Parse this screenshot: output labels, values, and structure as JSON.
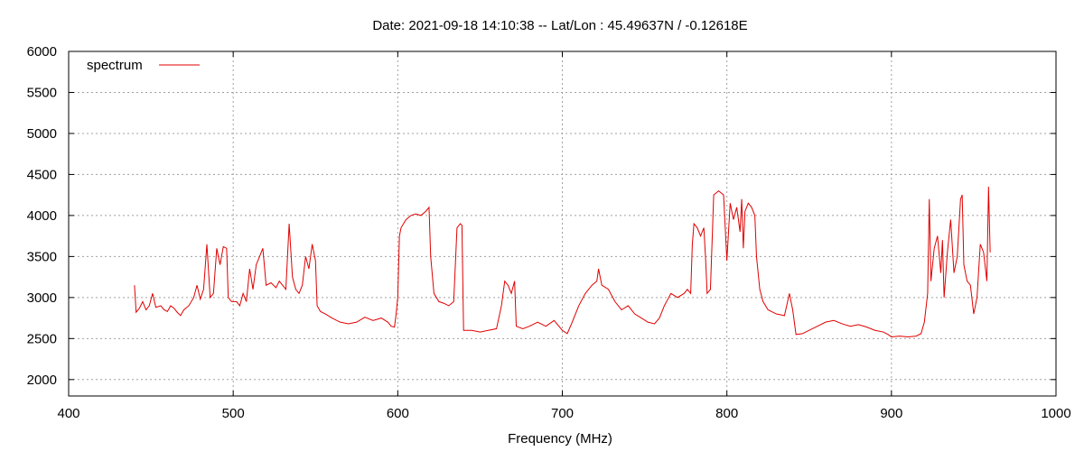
{
  "chart_data": {
    "type": "line",
    "title": "Date: 2021-09-18 14:10:38  --  Lat/Lon : 45.49637N / -0.12618E",
    "xlabel": "Frequency (MHz)",
    "ylabel": "",
    "xlim": [
      400,
      1000
    ],
    "ylim": [
      1800,
      6000
    ],
    "xticks": [
      "400",
      "500",
      "600",
      "700",
      "800",
      "900",
      "1000"
    ],
    "yticks": [
      "2000",
      "2500",
      "3000",
      "3500",
      "4000",
      "4500",
      "5000",
      "5500",
      "6000"
    ],
    "grid": true,
    "legend_position": "top-left",
    "series": [
      {
        "name": "spectrum",
        "color": "#e00000",
        "points": [
          [
            440,
            3150
          ],
          [
            441,
            2820
          ],
          [
            443,
            2870
          ],
          [
            445,
            2950
          ],
          [
            447,
            2850
          ],
          [
            449,
            2900
          ],
          [
            451,
            3050
          ],
          [
            453,
            2880
          ],
          [
            456,
            2900
          ],
          [
            458,
            2850
          ],
          [
            460,
            2830
          ],
          [
            462,
            2900
          ],
          [
            464,
            2870
          ],
          [
            466,
            2820
          ],
          [
            468,
            2780
          ],
          [
            470,
            2850
          ],
          [
            473,
            2900
          ],
          [
            476,
            3000
          ],
          [
            478,
            3150
          ],
          [
            480,
            2980
          ],
          [
            482,
            3100
          ],
          [
            484,
            3650
          ],
          [
            486,
            3000
          ],
          [
            488,
            3050
          ],
          [
            490,
            3600
          ],
          [
            492,
            3400
          ],
          [
            494,
            3620
          ],
          [
            496,
            3600
          ],
          [
            497,
            3000
          ],
          [
            499,
            2950
          ],
          [
            502,
            2950
          ],
          [
            504,
            2900
          ],
          [
            506,
            3050
          ],
          [
            508,
            2950
          ],
          [
            510,
            3350
          ],
          [
            512,
            3100
          ],
          [
            514,
            3400
          ],
          [
            516,
            3500
          ],
          [
            518,
            3600
          ],
          [
            520,
            3150
          ],
          [
            523,
            3180
          ],
          [
            526,
            3120
          ],
          [
            528,
            3200
          ],
          [
            530,
            3150
          ],
          [
            532,
            3100
          ],
          [
            534,
            3900
          ],
          [
            536,
            3250
          ],
          [
            538,
            3100
          ],
          [
            540,
            3050
          ],
          [
            542,
            3150
          ],
          [
            544,
            3500
          ],
          [
            546,
            3350
          ],
          [
            548,
            3650
          ],
          [
            550,
            3450
          ],
          [
            551,
            2900
          ],
          [
            553,
            2830
          ],
          [
            556,
            2800
          ],
          [
            560,
            2750
          ],
          [
            565,
            2700
          ],
          [
            570,
            2680
          ],
          [
            575,
            2700
          ],
          [
            580,
            2760
          ],
          [
            585,
            2720
          ],
          [
            590,
            2750
          ],
          [
            594,
            2700
          ],
          [
            596,
            2650
          ],
          [
            598,
            2640
          ],
          [
            599,
            2800
          ],
          [
            600,
            3000
          ],
          [
            601,
            3750
          ],
          [
            602,
            3850
          ],
          [
            605,
            3950
          ],
          [
            608,
            4000
          ],
          [
            611,
            4020
          ],
          [
            614,
            4000
          ],
          [
            617,
            4050
          ],
          [
            619,
            4100
          ],
          [
            620,
            3500
          ],
          [
            622,
            3050
          ],
          [
            625,
            2950
          ],
          [
            628,
            2930
          ],
          [
            631,
            2900
          ],
          [
            634,
            2950
          ],
          [
            636,
            3850
          ],
          [
            638,
            3900
          ],
          [
            639,
            3880
          ],
          [
            640,
            2600
          ],
          [
            645,
            2600
          ],
          [
            650,
            2580
          ],
          [
            655,
            2600
          ],
          [
            660,
            2620
          ],
          [
            663,
            2900
          ],
          [
            665,
            3200
          ],
          [
            667,
            3150
          ],
          [
            669,
            3050
          ],
          [
            671,
            3200
          ],
          [
            672,
            2650
          ],
          [
            676,
            2620
          ],
          [
            680,
            2650
          ],
          [
            685,
            2700
          ],
          [
            690,
            2650
          ],
          [
            695,
            2720
          ],
          [
            700,
            2600
          ],
          [
            703,
            2560
          ],
          [
            706,
            2700
          ],
          [
            710,
            2900
          ],
          [
            714,
            3050
          ],
          [
            718,
            3150
          ],
          [
            721,
            3200
          ],
          [
            722,
            3350
          ],
          [
            724,
            3150
          ],
          [
            728,
            3100
          ],
          [
            732,
            2950
          ],
          [
            736,
            2850
          ],
          [
            740,
            2900
          ],
          [
            744,
            2800
          ],
          [
            748,
            2750
          ],
          [
            752,
            2700
          ],
          [
            756,
            2680
          ],
          [
            759,
            2750
          ],
          [
            762,
            2900
          ],
          [
            766,
            3050
          ],
          [
            770,
            3000
          ],
          [
            774,
            3050
          ],
          [
            776,
            3100
          ],
          [
            778,
            3050
          ],
          [
            779,
            3650
          ],
          [
            780,
            3900
          ],
          [
            782,
            3850
          ],
          [
            784,
            3750
          ],
          [
            786,
            3850
          ],
          [
            787,
            3500
          ],
          [
            788,
            3050
          ],
          [
            790,
            3100
          ],
          [
            792,
            4250
          ],
          [
            795,
            4300
          ],
          [
            798,
            4250
          ],
          [
            800,
            3450
          ],
          [
            802,
            4150
          ],
          [
            804,
            3950
          ],
          [
            806,
            4100
          ],
          [
            808,
            3800
          ],
          [
            809,
            4200
          ],
          [
            810,
            3600
          ],
          [
            811,
            4050
          ],
          [
            813,
            4150
          ],
          [
            815,
            4100
          ],
          [
            817,
            4000
          ],
          [
            818,
            3500
          ],
          [
            820,
            3100
          ],
          [
            822,
            2950
          ],
          [
            825,
            2850
          ],
          [
            830,
            2800
          ],
          [
            835,
            2780
          ],
          [
            838,
            3050
          ],
          [
            840,
            2850
          ],
          [
            842,
            2550
          ],
          [
            846,
            2560
          ],
          [
            850,
            2600
          ],
          [
            855,
            2650
          ],
          [
            860,
            2700
          ],
          [
            865,
            2720
          ],
          [
            870,
            2680
          ],
          [
            875,
            2650
          ],
          [
            880,
            2670
          ],
          [
            885,
            2640
          ],
          [
            890,
            2600
          ],
          [
            895,
            2580
          ],
          [
            898,
            2550
          ],
          [
            900,
            2520
          ],
          [
            905,
            2530
          ],
          [
            910,
            2520
          ],
          [
            915,
            2530
          ],
          [
            918,
            2560
          ],
          [
            920,
            2700
          ],
          [
            922,
            3050
          ],
          [
            923,
            4200
          ],
          [
            924,
            3200
          ],
          [
            926,
            3600
          ],
          [
            928,
            3750
          ],
          [
            930,
            3300
          ],
          [
            931,
            3700
          ],
          [
            932,
            3000
          ],
          [
            934,
            3550
          ],
          [
            936,
            3950
          ],
          [
            938,
            3300
          ],
          [
            940,
            3500
          ],
          [
            942,
            4200
          ],
          [
            943,
            4250
          ],
          [
            944,
            3400
          ],
          [
            946,
            3200
          ],
          [
            948,
            3150
          ],
          [
            950,
            2800
          ],
          [
            952,
            3000
          ],
          [
            954,
            3650
          ],
          [
            956,
            3550
          ],
          [
            958,
            3200
          ],
          [
            959,
            4350
          ],
          [
            960,
            3550
          ]
        ]
      }
    ]
  }
}
